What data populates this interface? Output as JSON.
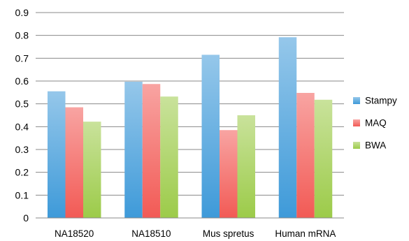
{
  "chart_data": {
    "type": "bar",
    "title": "",
    "xlabel": "",
    "ylabel": "",
    "categories": [
      "NA18520",
      "NA18510",
      "Mus spretus",
      "Human mRNA"
    ],
    "series": [
      {
        "name": "Stampy",
        "values": [
          0.555,
          0.597,
          0.715,
          0.792
        ],
        "color": "#3e9ad9"
      },
      {
        "name": "MAQ",
        "values": [
          0.485,
          0.587,
          0.385,
          0.548
        ],
        "color": "#f25a55"
      },
      {
        "name": "BWA",
        "values": [
          0.422,
          0.532,
          0.45,
          0.518
        ],
        "color": "#9ccb49"
      }
    ],
    "ylim": [
      0,
      0.9
    ],
    "yticks": [
      "0",
      "0.1",
      "0.2",
      "0.3",
      "0.4",
      "0.5",
      "0.6",
      "0.7",
      "0.8",
      "0.9"
    ],
    "grid": true,
    "legend_position": "right"
  }
}
